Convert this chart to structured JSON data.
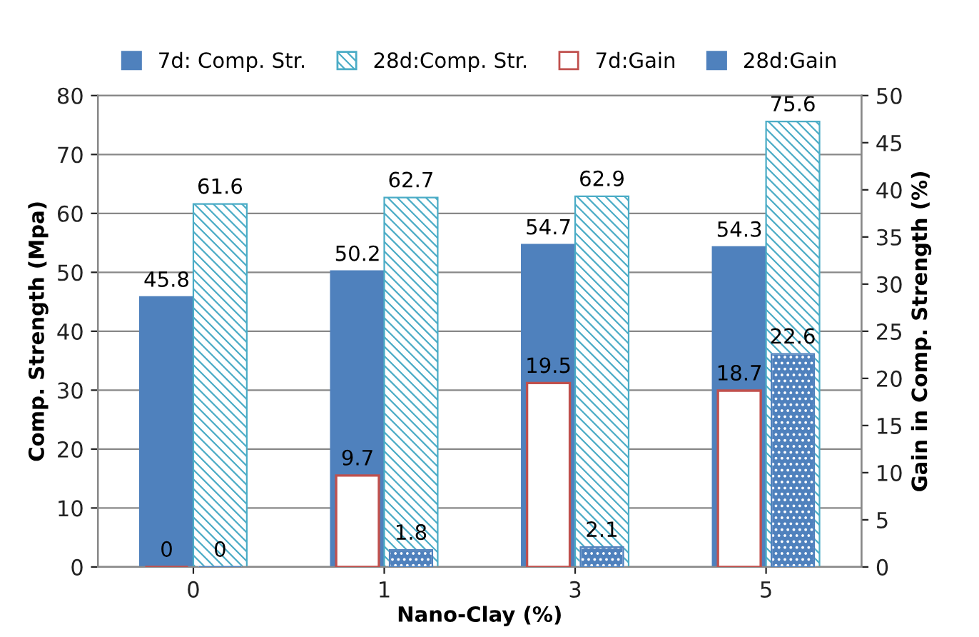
{
  "chart_data": {
    "type": "bar",
    "categories": [
      "0",
      "1",
      "3",
      "5"
    ],
    "xlabel": "Nano-Clay (%)",
    "ylabel": "Comp. Strength (Mpa)",
    "y2label": "Gain in Comp. Strength (%)",
    "series": [
      {
        "name": "7d: Comp. Str.",
        "color": "#4f81bd",
        "values": [
          45.8,
          50.2,
          54.7,
          54.3
        ]
      },
      {
        "name": "28d:Comp. Str.",
        "color": "#4bacc6",
        "values": [
          61.6,
          62.7,
          62.9,
          75.6
        ]
      },
      {
        "name": "7d:Gain",
        "color": "#c0504d",
        "axis": "y2",
        "values": [
          0,
          9.7,
          19.5,
          18.7
        ]
      },
      {
        "name": "28d:Gain",
        "color": "#4f81bd",
        "axis": "y2",
        "values": [
          0,
          1.8,
          2.1,
          22.6
        ]
      }
    ],
    "ylim": [
      0,
      80
    ],
    "yticks": [
      0,
      10,
      20,
      30,
      40,
      50,
      60,
      70,
      80
    ],
    "y2lim": [
      0,
      50
    ],
    "y2ticks": [
      0,
      5,
      10,
      15,
      20,
      25,
      30,
      35,
      40,
      45,
      50
    ],
    "grid": "y",
    "legend": "top",
    "data_labels": true
  }
}
